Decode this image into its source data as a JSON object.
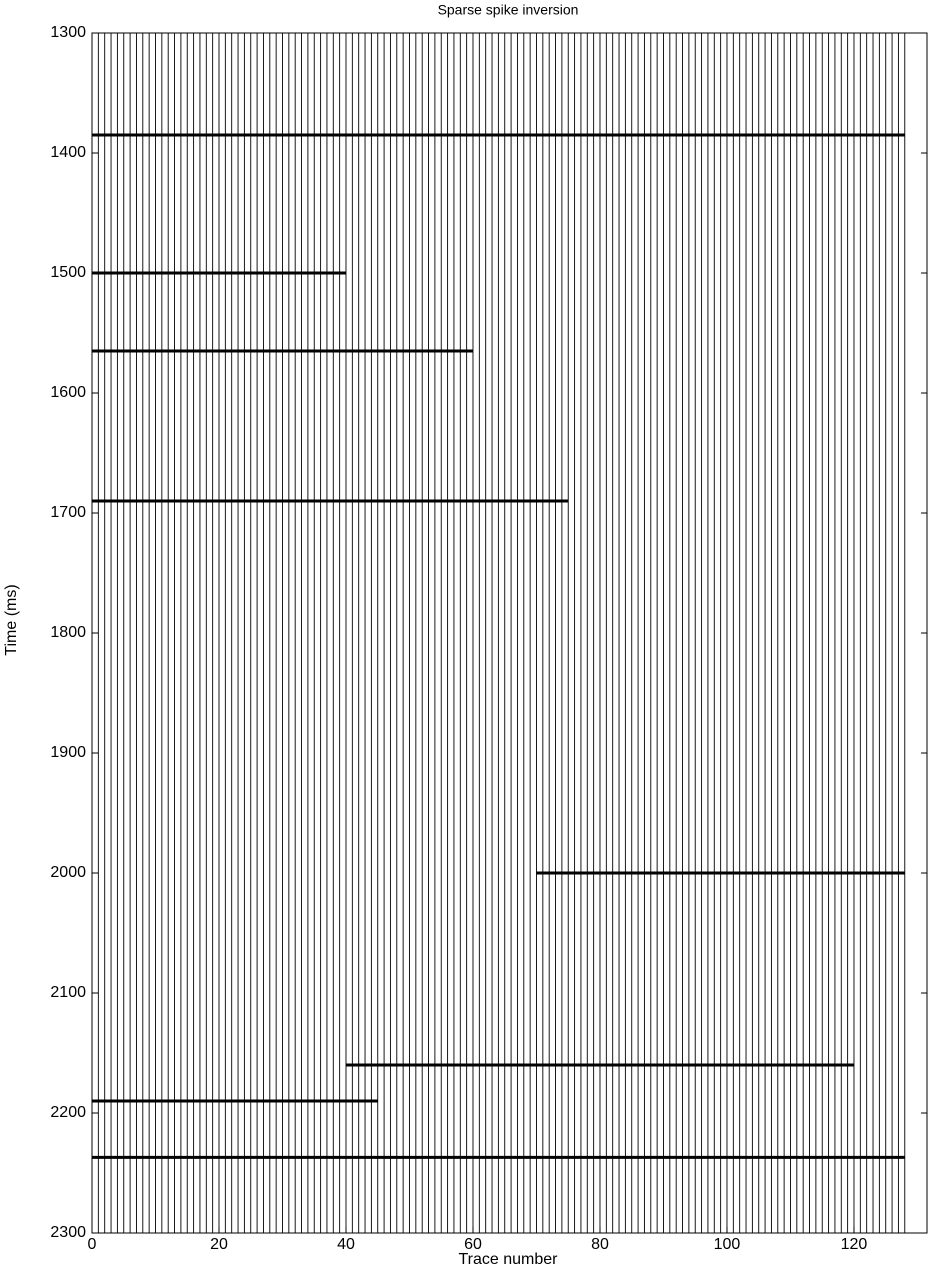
{
  "chart_data": {
    "type": "wiggle",
    "title": "Sparse spike inversion",
    "x_label": "Trace number",
    "y_label": "Time (ms)",
    "x": [
      0,
      1,
      2,
      3,
      4,
      5,
      6,
      7,
      8,
      9,
      10,
      11,
      12,
      13,
      14,
      15,
      16,
      17,
      18,
      19,
      20,
      21,
      22,
      23,
      24,
      25,
      26,
      27,
      28,
      29,
      30,
      31,
      32,
      33,
      34,
      35,
      36,
      37,
      38,
      39,
      40,
      41,
      42,
      43,
      44,
      45,
      46,
      47,
      48,
      49,
      50,
      51,
      52,
      53,
      54,
      55,
      56,
      57,
      58,
      59,
      60,
      61,
      62,
      63,
      64,
      65,
      66,
      67,
      68,
      69,
      70,
      71,
      72,
      73,
      74,
      75,
      76,
      77,
      78,
      79,
      80,
      81,
      82,
      83,
      84,
      85,
      86,
      87,
      88,
      89,
      90,
      91,
      92,
      93,
      94,
      95,
      96,
      97,
      98,
      99,
      100,
      101,
      102,
      103,
      104,
      105,
      106,
      107,
      108,
      109,
      110,
      111,
      112,
      113,
      114,
      115,
      116,
      117,
      118,
      119,
      120,
      121,
      122,
      123,
      124,
      125,
      126,
      127,
      128
    ],
    "events": [
      {
        "time": 1385,
        "x": [
          0,
          128
        ]
      },
      {
        "time": 1500,
        "x": [
          0,
          40
        ]
      },
      {
        "time": 1565,
        "x": [
          0,
          60
        ]
      },
      {
        "time": 1690,
        "x": [
          0,
          75
        ]
      },
      {
        "time": 2000,
        "x": [
          70,
          128
        ]
      },
      {
        "time": 2160,
        "x": [
          40,
          120
        ]
      },
      {
        "time": 2190,
        "x": [
          0,
          45
        ]
      },
      {
        "time": 2237,
        "x": [
          0,
          128
        ]
      }
    ],
    "color": "#000000",
    "xlim": [
      0,
      131.5
    ],
    "xticks": [
      0,
      20,
      40,
      60,
      80,
      100,
      120
    ],
    "ylim": [
      1300,
      2300
    ],
    "yticks": [
      1300,
      1400,
      1500,
      1600,
      1700,
      1800,
      1900,
      2000,
      2100,
      2200,
      2300
    ],
    "y_inverted": true
  }
}
